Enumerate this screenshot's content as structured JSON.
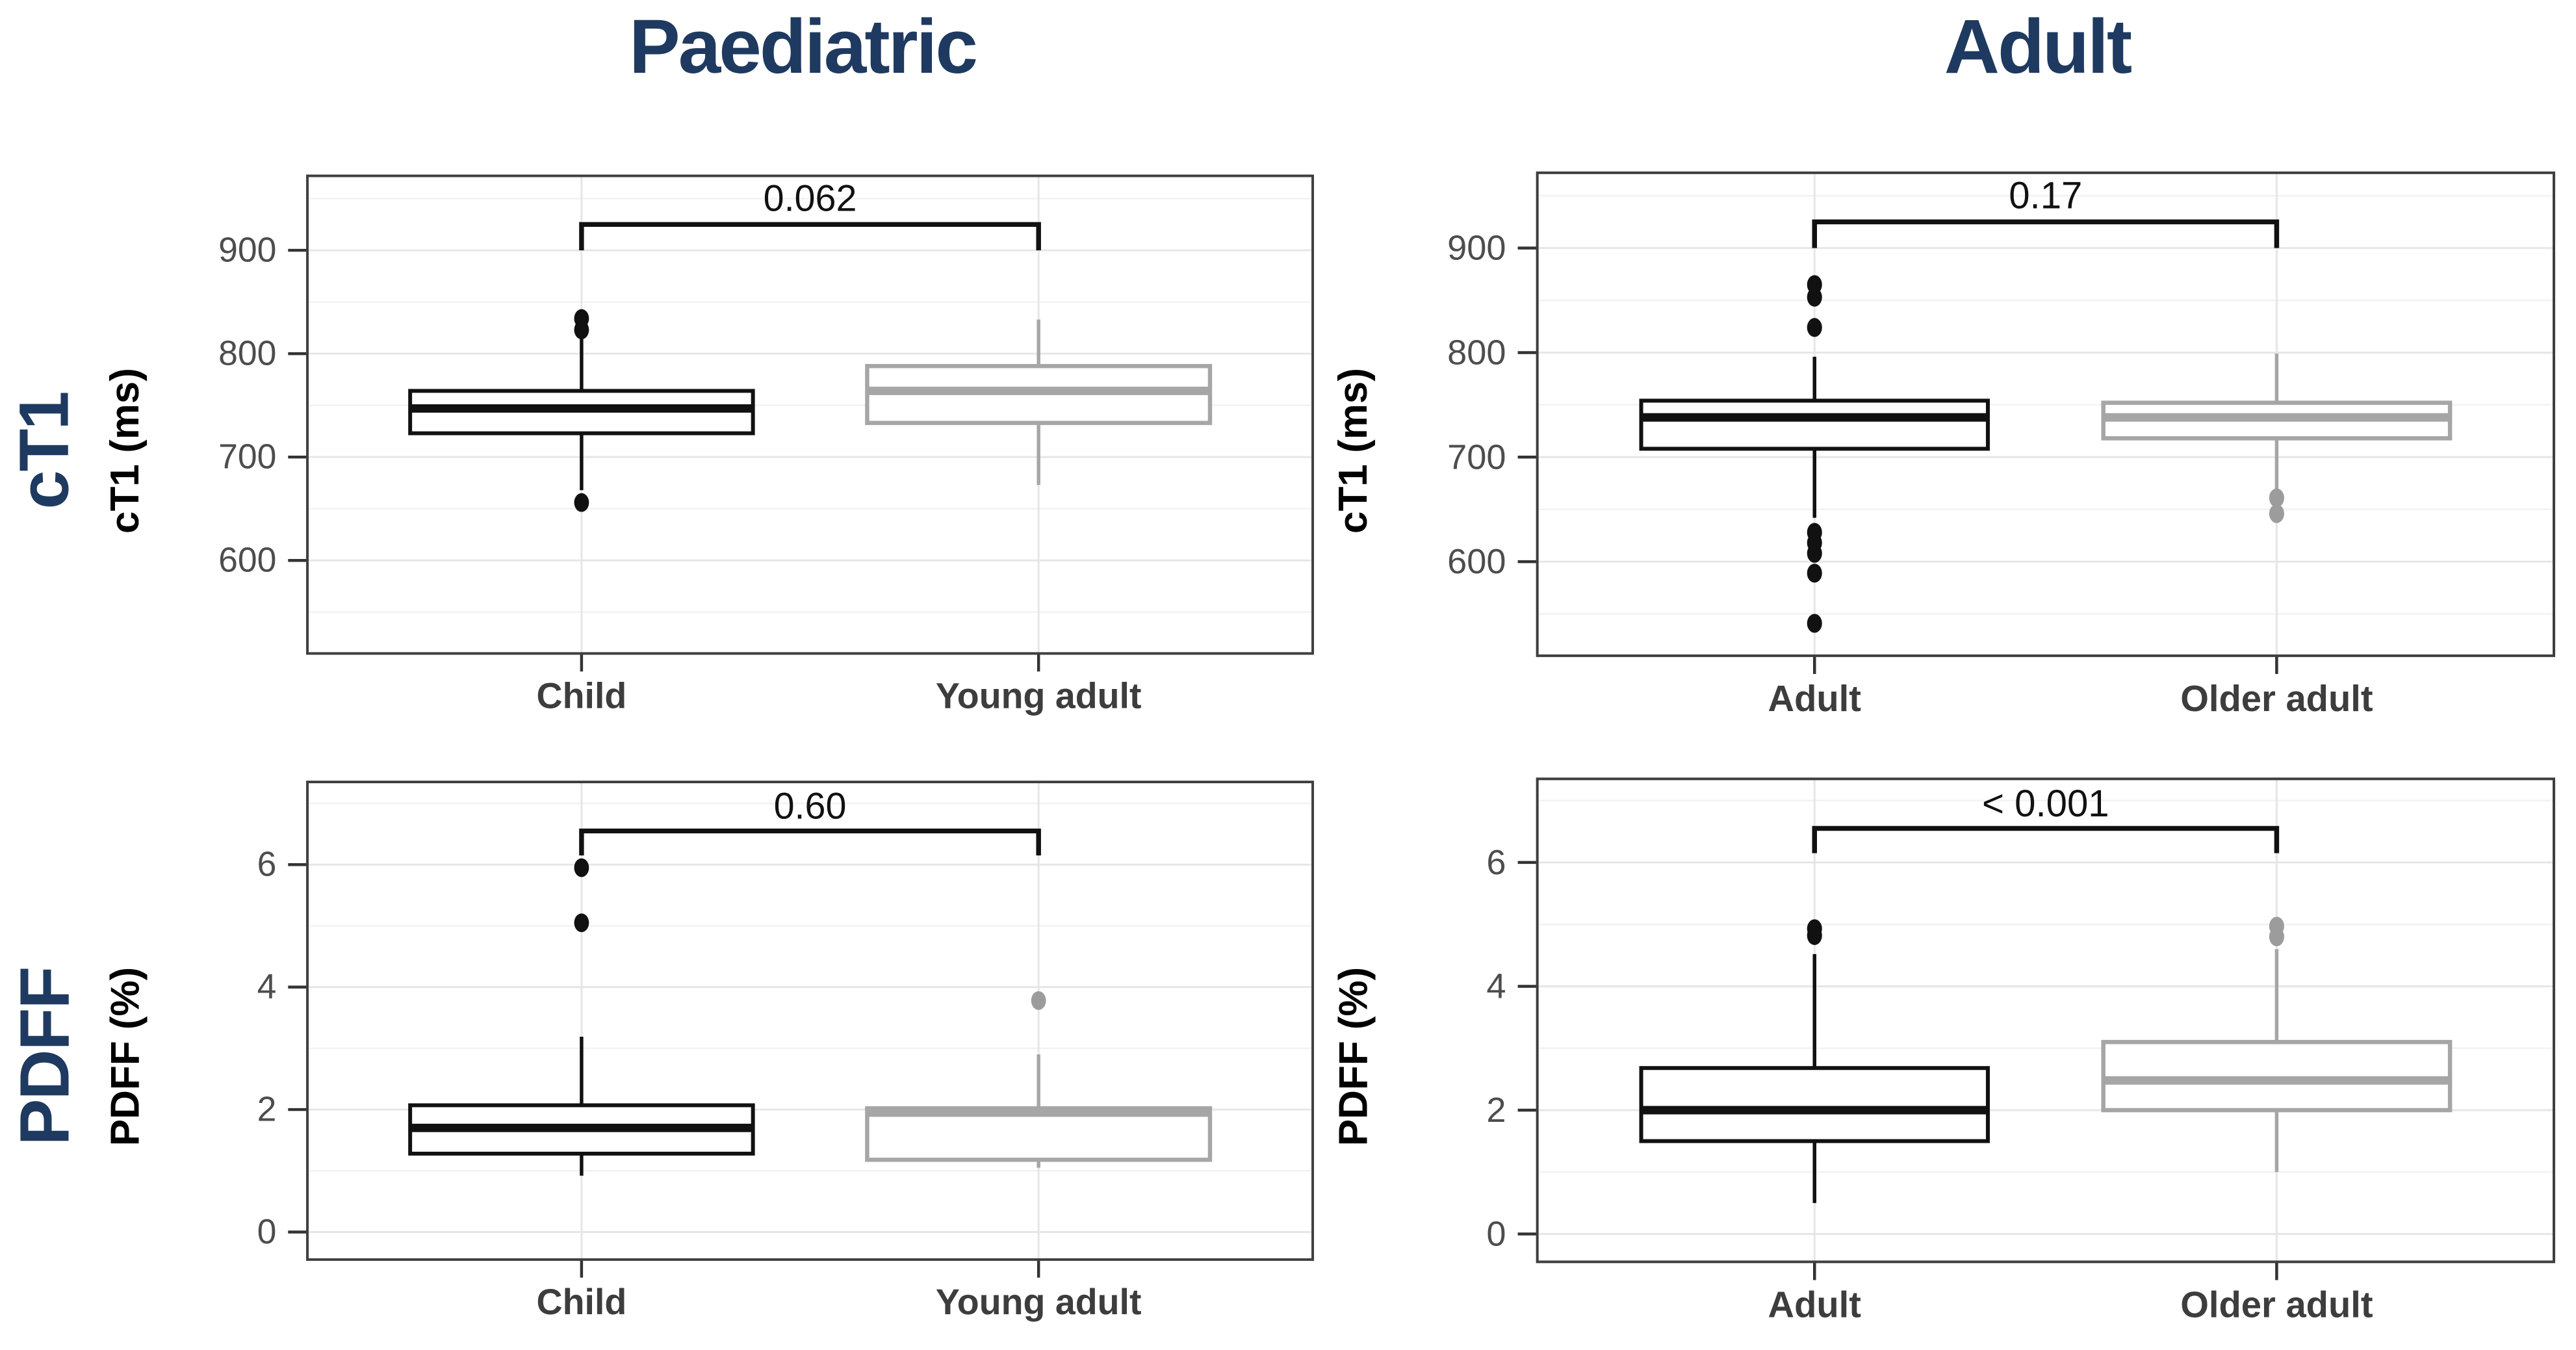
{
  "figure": {
    "column_titles": [
      "Paediatric",
      "Adult"
    ],
    "row_titles": [
      "cT1",
      "PDFF"
    ],
    "colors": {
      "title_navy": "#1f3a60",
      "box_black": "#111111",
      "box_gray": "#a6a6a6",
      "outlier_gray": "#9c9c9c",
      "grid_major": "#e6e6e6",
      "grid_minor": "#f2f2f2",
      "panel_border": "#3f3f3f",
      "axis_tick": "#333333",
      "tick_text": "#4d4d4d",
      "label_text": "#3d3d3d",
      "bracket": "#111111"
    }
  },
  "chart_data": [
    {
      "type": "boxplot",
      "panel": "Paediatric cT1",
      "ylabel": "cT1 (ms)",
      "ydomain": [
        510,
        972
      ],
      "yticks": [
        600,
        700,
        800,
        900
      ],
      "yminor": [
        550,
        650,
        750,
        850,
        950
      ],
      "grid": true,
      "pvalue": {
        "label": "0.062",
        "bar_y": 925,
        "tick_end": 900,
        "label_y": 950
      },
      "groups": [
        {
          "label": "Child",
          "color": "black",
          "stats": {
            "lo": 668,
            "q1": 723,
            "med": 747,
            "q3": 764,
            "hi": 816
          },
          "outliers": [
            656,
            823,
            834
          ]
        },
        {
          "label": "Young adult",
          "color": "gray",
          "stats": {
            "lo": 673,
            "q1": 733,
            "med": 764,
            "q3": 788,
            "hi": 833
          },
          "outliers": []
        }
      ]
    },
    {
      "type": "boxplot",
      "panel": "Adult cT1",
      "ylabel": "cT1 (ms)",
      "ydomain": [
        510,
        972
      ],
      "yticks": [
        600,
        700,
        800,
        900
      ],
      "yminor": [
        550,
        650,
        750,
        850,
        950
      ],
      "grid": true,
      "pvalue": {
        "label": "0.17",
        "bar_y": 925,
        "tick_end": 900,
        "label_y": 950
      },
      "groups": [
        {
          "label": "Adult",
          "color": "black",
          "stats": {
            "lo": 642,
            "q1": 708,
            "med": 738,
            "q3": 754,
            "hi": 796
          },
          "outliers": [
            541,
            589,
            608,
            618,
            628,
            824,
            853,
            865
          ]
        },
        {
          "label": "Older adult",
          "color": "gray",
          "stats": {
            "lo": 668,
            "q1": 718,
            "med": 738,
            "q3": 752,
            "hi": 799
          },
          "outliers": [
            646,
            661
          ]
        }
      ]
    },
    {
      "type": "boxplot",
      "panel": "Paediatric PDFF",
      "ylabel": "PDFF (%)",
      "ydomain": [
        -0.45,
        7.35
      ],
      "yticks": [
        0,
        2,
        4,
        6
      ],
      "yminor": [
        1,
        3,
        5,
        7
      ],
      "grid": true,
      "pvalue": {
        "label": "0.60",
        "bar_y": 6.55,
        "tick_end": 6.15,
        "label_y": 6.95
      },
      "groups": [
        {
          "label": "Child",
          "color": "black",
          "stats": {
            "lo": 0.92,
            "q1": 1.28,
            "med": 1.7,
            "q3": 2.07,
            "hi": 3.19
          },
          "outliers": [
            5.05,
            5.95
          ]
        },
        {
          "label": "Young adult",
          "color": "gray",
          "stats": {
            "lo": 1.05,
            "q1": 1.18,
            "med": 1.95,
            "q3": 2.02,
            "hi": 2.9
          },
          "outliers": [
            3.78
          ]
        }
      ]
    },
    {
      "type": "boxplot",
      "panel": "Adult PDFF",
      "ylabel": "PDFF (%)",
      "ydomain": [
        -0.45,
        7.35
      ],
      "yticks": [
        0,
        2,
        4,
        6
      ],
      "yminor": [
        1,
        3,
        5,
        7
      ],
      "grid": true,
      "pvalue": {
        "label": "< 0.001",
        "bar_y": 6.55,
        "tick_end": 6.15,
        "label_y": 6.95
      },
      "groups": [
        {
          "label": "Adult",
          "color": "black",
          "stats": {
            "lo": 0.5,
            "q1": 1.5,
            "med": 2.0,
            "q3": 2.68,
            "hi": 4.52
          },
          "outliers": [
            4.82,
            4.93
          ]
        },
        {
          "label": "Older adult",
          "color": "gray",
          "stats": {
            "lo": 1.0,
            "q1": 2.0,
            "med": 2.48,
            "q3": 3.1,
            "hi": 4.6
          },
          "outliers": [
            4.8,
            4.97
          ]
        }
      ]
    }
  ]
}
